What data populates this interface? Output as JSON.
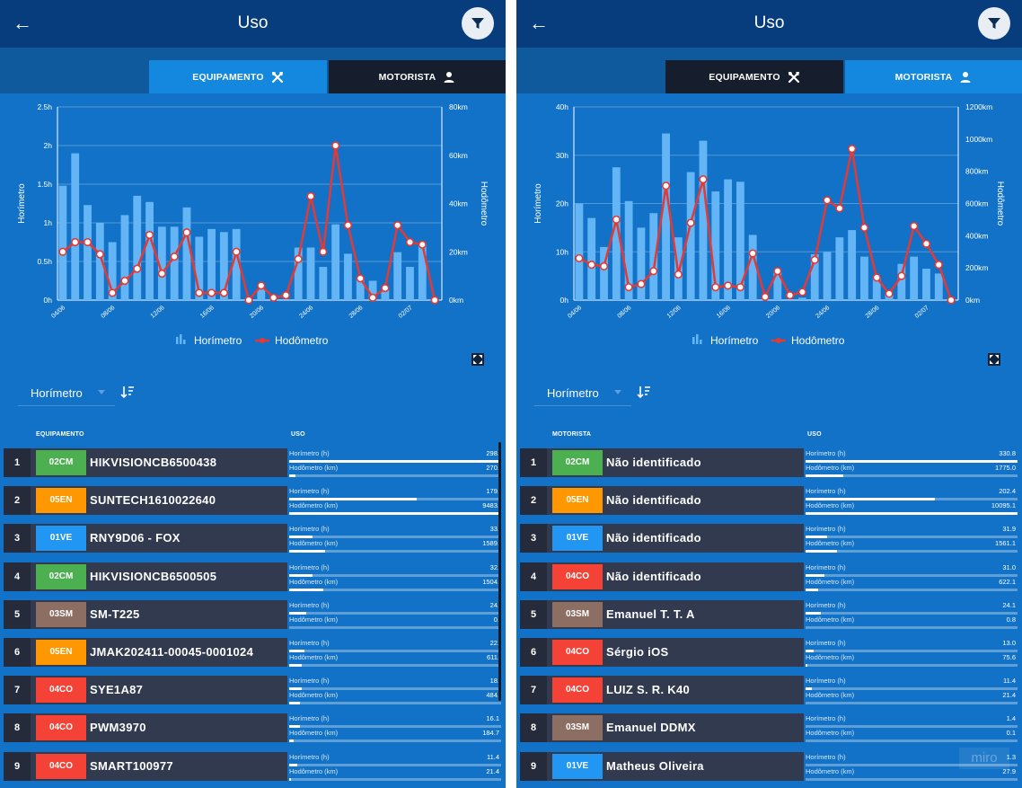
{
  "colors": {
    "topbar": "#073d7d",
    "background": "#1272c7",
    "bar": "#64b5f6",
    "line": "#e53935",
    "row": "#323a4f"
  },
  "screens": [
    {
      "header": {
        "title": "Uso",
        "back_icon": "arrow-left-icon",
        "filter_icon": "filter-icon"
      },
      "tabs": [
        {
          "label": "EQUIPAMENTO",
          "icon": "tools-icon",
          "active": true
        },
        {
          "label": "MOTORISTA",
          "icon": "person-icon",
          "active": false
        }
      ],
      "sort": {
        "label": "Horímetro",
        "icon": "sort-desc-icon"
      },
      "columns": {
        "left": "EQUIPAMENTO",
        "right": "USO"
      },
      "rows": [
        {
          "rank": "1",
          "badge": "02CM",
          "badge_color": "#4caf50",
          "name": "HIKVISIONCB6500438",
          "l1_label": "Horímetro (h)",
          "l1_value": "298.",
          "l1_fill": 1.0,
          "l2_label": "Hodômetro (km)",
          "l2_value": "270.",
          "l2_fill": 0.03
        },
        {
          "rank": "2",
          "badge": "05EN",
          "badge_color": "#ff9800",
          "name": "SUNTECH1610022640",
          "l1_label": "Horímetro (h)",
          "l1_value": "179.",
          "l1_fill": 0.6,
          "l2_label": "Hodômetro (km)",
          "l2_value": "9483.",
          "l2_fill": 1.0
        },
        {
          "rank": "3",
          "badge": "01VE",
          "badge_color": "#2196f3",
          "name": "RNY9D06 - FOX",
          "l1_label": "Horímetro (h)",
          "l1_value": "33.",
          "l1_fill": 0.11,
          "l2_label": "Hodômetro (km)",
          "l2_value": "1589.",
          "l2_fill": 0.17
        },
        {
          "rank": "4",
          "badge": "02CM",
          "badge_color": "#4caf50",
          "name": "HIKVISIONCB6500505",
          "l1_label": "Horímetro (h)",
          "l1_value": "32.",
          "l1_fill": 0.11,
          "l2_label": "Hodômetro (km)",
          "l2_value": "1504.",
          "l2_fill": 0.16
        },
        {
          "rank": "5",
          "badge": "03SM",
          "badge_color": "#8d6e63",
          "name": "SM-T225",
          "l1_label": "Horímetro (h)",
          "l1_value": "24.",
          "l1_fill": 0.08,
          "l2_label": "Hodômetro (km)",
          "l2_value": "0.",
          "l2_fill": 0.0
        },
        {
          "rank": "6",
          "badge": "05EN",
          "badge_color": "#ff9800",
          "name": "JMAK202411-00045-0001024",
          "l1_label": "Horímetro (h)",
          "l1_value": "22.",
          "l1_fill": 0.07,
          "l2_label": "Hodômetro (km)",
          "l2_value": "611.",
          "l2_fill": 0.06
        },
        {
          "rank": "7",
          "badge": "04CO",
          "badge_color": "#f44336",
          "name": "SYE1A87",
          "l1_label": "Horímetro (h)",
          "l1_value": "18.",
          "l1_fill": 0.06,
          "l2_label": "Hodômetro (km)",
          "l2_value": "484.",
          "l2_fill": 0.05
        },
        {
          "rank": "8",
          "badge": "04CO",
          "badge_color": "#f44336",
          "name": "PWM3970",
          "l1_label": "Horímetro (h)",
          "l1_value": "16.1",
          "l1_fill": 0.05,
          "l2_label": "Hodômetro (km)",
          "l2_value": "184.7",
          "l2_fill": 0.02
        },
        {
          "rank": "9",
          "badge": "04CO",
          "badge_color": "#f44336",
          "name": "SMART100977",
          "l1_label": "Horímetro (h)",
          "l1_value": "11.4",
          "l1_fill": 0.04,
          "l2_label": "Hodômetro (km)",
          "l2_value": "21.4",
          "l2_fill": 0.01
        }
      ]
    },
    {
      "header": {
        "title": "Uso",
        "back_icon": "arrow-left-icon",
        "filter_icon": "filter-icon"
      },
      "tabs": [
        {
          "label": "EQUIPAMENTO",
          "icon": "tools-icon",
          "active": false
        },
        {
          "label": "MOTORISTA",
          "icon": "person-icon",
          "active": true
        }
      ],
      "sort": {
        "label": "Horímetro",
        "icon": "sort-desc-icon"
      },
      "columns": {
        "left": "MOTORISTA",
        "right": "USO"
      },
      "rows": [
        {
          "rank": "1",
          "badge": "02CM",
          "badge_color": "#4caf50",
          "name": "Não identificado",
          "l1_label": "Horímetro (h)",
          "l1_value": "330.8",
          "l1_fill": 1.0,
          "l2_label": "Hodômetro (km)",
          "l2_value": "1775.0",
          "l2_fill": 0.18
        },
        {
          "rank": "2",
          "badge": "05EN",
          "badge_color": "#ff9800",
          "name": "Não identificado",
          "l1_label": "Horímetro (h)",
          "l1_value": "202.4",
          "l1_fill": 0.61,
          "l2_label": "Hodômetro (km)",
          "l2_value": "10095.1",
          "l2_fill": 1.0
        },
        {
          "rank": "3",
          "badge": "01VE",
          "badge_color": "#2196f3",
          "name": "Não identificado",
          "l1_label": "Horímetro (h)",
          "l1_value": "31.9",
          "l1_fill": 0.1,
          "l2_label": "Hodômetro (km)",
          "l2_value": "1561.1",
          "l2_fill": 0.15
        },
        {
          "rank": "4",
          "badge": "04CO",
          "badge_color": "#f44336",
          "name": "Não identificado",
          "l1_label": "Horímetro (h)",
          "l1_value": "31.0",
          "l1_fill": 0.09,
          "l2_label": "Hodômetro (km)",
          "l2_value": "622.1",
          "l2_fill": 0.06
        },
        {
          "rank": "5",
          "badge": "03SM",
          "badge_color": "#8d6e63",
          "name": "Emanuel T. T. A",
          "l1_label": "Horímetro (h)",
          "l1_value": "24.1",
          "l1_fill": 0.07,
          "l2_label": "Hodômetro (km)",
          "l2_value": "0.8",
          "l2_fill": 0.0
        },
        {
          "rank": "6",
          "badge": "04CO",
          "badge_color": "#f44336",
          "name": "Sérgio iOS",
          "l1_label": "Horímetro (h)",
          "l1_value": "13.0",
          "l1_fill": 0.04,
          "l2_label": "Hodômetro (km)",
          "l2_value": "75.6",
          "l2_fill": 0.01
        },
        {
          "rank": "7",
          "badge": "04CO",
          "badge_color": "#f44336",
          "name": "LUIZ S. R. K40",
          "l1_label": "Horímetro (h)",
          "l1_value": "11.4",
          "l1_fill": 0.03,
          "l2_label": "Hodômetro (km)",
          "l2_value": "21.4",
          "l2_fill": 0.0
        },
        {
          "rank": "8",
          "badge": "03SM",
          "badge_color": "#8d6e63",
          "name": "Emanuel DDMX",
          "l1_label": "Horímetro (h)",
          "l1_value": "1.4",
          "l1_fill": 0.0,
          "l2_label": "Hodômetro (km)",
          "l2_value": "0.1",
          "l2_fill": 0.0
        },
        {
          "rank": "9",
          "badge": "01VE",
          "badge_color": "#2196f3",
          "name": "Matheus Oliveira",
          "l1_label": "Horímetro (h)",
          "l1_value": "1.3",
          "l1_fill": 0.0,
          "l2_label": "Hodômetro (km)",
          "l2_value": "27.9",
          "l2_fill": 0.0
        }
      ]
    }
  ],
  "chart_data": [
    {
      "type": "bar",
      "x_ticks": [
        "04/06",
        "08/06",
        "12/06",
        "16/06",
        "20/06",
        "24/06",
        "28/06",
        "02/07"
      ],
      "left_axis": {
        "label": "Horímetro",
        "ticks": [
          "0h",
          "0.5h",
          "1h",
          "1.5h",
          "2h",
          "2.5h"
        ],
        "ylim": [
          0,
          2.5
        ]
      },
      "right_axis": {
        "label": "Hodômetro",
        "ticks": [
          "0km",
          "20km",
          "40km",
          "60km",
          "80km"
        ],
        "ylim": [
          0,
          80
        ]
      },
      "legend": [
        "Horímetro",
        "Hodômetro"
      ],
      "series": [
        {
          "name": "Horímetro",
          "type": "bar",
          "values": [
            1.48,
            1.9,
            1.23,
            1.0,
            0.75,
            1.1,
            1.35,
            1.27,
            0.95,
            0.95,
            1.2,
            0.82,
            0.92,
            0.88,
            0.92,
            0.0,
            0.15,
            0.0,
            0.0,
            0.68,
            0.68,
            0.43,
            0.98,
            0.6,
            0.27,
            0.25,
            0.13,
            0.62,
            0.43,
            0.72,
            0.0
          ]
        },
        {
          "name": "Hodômetro",
          "type": "line",
          "values": [
            20,
            24,
            24,
            19,
            3,
            8,
            13,
            27,
            11,
            18,
            28,
            3,
            3,
            3,
            20,
            0,
            6,
            1,
            2,
            17,
            43,
            20,
            64,
            31,
            9,
            1,
            5,
            31,
            24,
            23,
            0
          ]
        }
      ]
    },
    {
      "type": "bar",
      "x_ticks": [
        "04/06",
        "08/06",
        "12/06",
        "16/06",
        "20/06",
        "24/06",
        "28/06",
        "02/07"
      ],
      "left_axis": {
        "label": "Horímetro",
        "ticks": [
          "0h",
          "10h",
          "20h",
          "30h",
          "40h"
        ],
        "ylim": [
          0,
          40
        ]
      },
      "right_axis": {
        "label": "Hodômetro",
        "ticks": [
          "0km",
          "200km",
          "400km",
          "600km",
          "800km",
          "1000km",
          "1200km"
        ],
        "ylim": [
          0,
          1200
        ]
      },
      "legend": [
        "Horímetro",
        "Hodômetro"
      ],
      "series": [
        {
          "name": "Horímetro",
          "type": "bar",
          "values": [
            20,
            17,
            11,
            27.5,
            20.5,
            15,
            18,
            34.5,
            13,
            26.5,
            33,
            22.5,
            25,
            24.5,
            13.5,
            0,
            6,
            0,
            0.5,
            9.5,
            10,
            13,
            14.5,
            9,
            4.5,
            1.5,
            7.5,
            9,
            6.5,
            5.5,
            0
          ]
        },
        {
          "name": "Hodômetro",
          "type": "line",
          "values": [
            260,
            220,
            210,
            500,
            80,
            100,
            180,
            710,
            160,
            480,
            750,
            80,
            90,
            80,
            290,
            20,
            180,
            30,
            50,
            250,
            620,
            570,
            940,
            450,
            140,
            40,
            150,
            460,
            350,
            220,
            0
          ]
        }
      ]
    }
  ]
}
